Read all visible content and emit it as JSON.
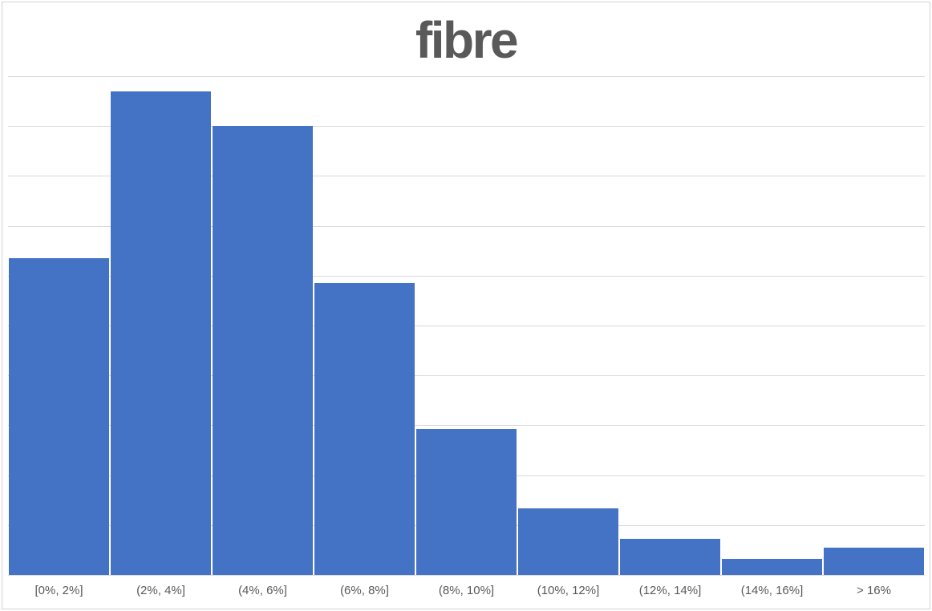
{
  "chart_data": {
    "type": "bar",
    "subtype": "histogram",
    "title": "fibre",
    "categories": [
      "[0%, 2%]",
      "(2%, 4%]",
      "(4%, 6%]",
      "(6%, 8%]",
      "(8%, 10%]",
      "(10%, 12%]",
      "(12%, 14%]",
      "(14%, 16%]",
      "> 16%"
    ],
    "values": [
      6.35,
      9.69,
      9.0,
      5.85,
      2.93,
      1.33,
      0.72,
      0.32,
      0.55
    ],
    "xlabel": "",
    "ylabel": "",
    "y_tick_labels": [],
    "ylim": [
      0,
      10
    ],
    "grid": "horizontal",
    "gridline_count": 10,
    "legend_position": "none",
    "colors": {
      "bar_fill": "#4472C4",
      "title_text": "#595959",
      "axis_label_text": "#595959",
      "gridline": "#D9D9D9",
      "axis_line": "#D9D9D9",
      "chart_border": "#D3D3D3",
      "background": "#FFFFFF"
    }
  }
}
